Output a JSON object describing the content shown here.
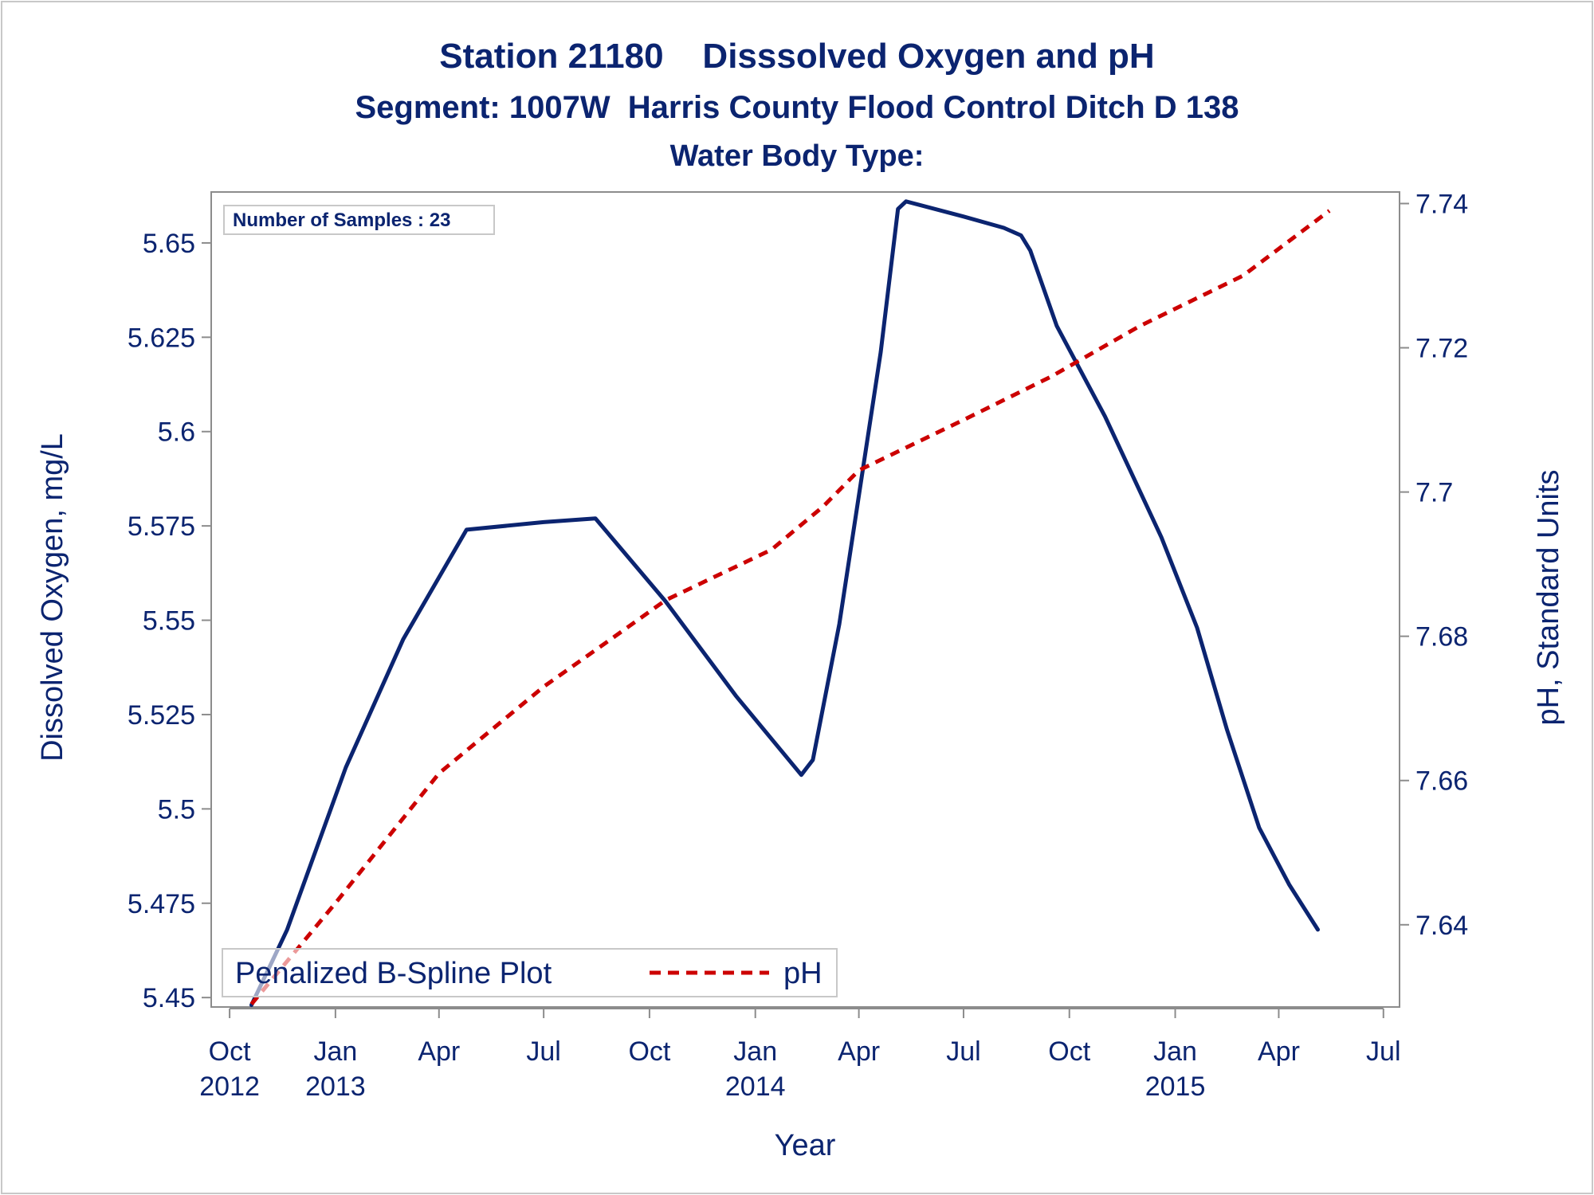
{
  "chart_data": {
    "type": "line",
    "title": "Station 21180    Disssolved Oxygen and pH",
    "subtitle": "Segment: 1007W  Harris County Flood Control Ditch D 138",
    "subtitle2": "Water Body Type:",
    "annotation": "Number of Samples : 23",
    "xlabel": "Year",
    "ylabel_left": "Dissolved Oxygen, mg/L",
    "ylabel_right": "pH, Standard Units",
    "x_ticks": [
      {
        "date": "2012-10-01",
        "label": "Oct",
        "year": "2012"
      },
      {
        "date": "2013-01-01",
        "label": "Jan",
        "year": "2013"
      },
      {
        "date": "2013-04-01",
        "label": "Apr",
        "year": ""
      },
      {
        "date": "2013-07-01",
        "label": "Jul",
        "year": ""
      },
      {
        "date": "2013-10-01",
        "label": "Oct",
        "year": ""
      },
      {
        "date": "2014-01-01",
        "label": "Jan",
        "year": "2014"
      },
      {
        "date": "2014-04-01",
        "label": "Apr",
        "year": ""
      },
      {
        "date": "2014-07-01",
        "label": "Jul",
        "year": ""
      },
      {
        "date": "2014-10-01",
        "label": "Oct",
        "year": ""
      },
      {
        "date": "2015-01-01",
        "label": "Jan",
        "year": "2015"
      },
      {
        "date": "2015-04-01",
        "label": "Apr",
        "year": ""
      },
      {
        "date": "2015-07-01",
        "label": "Jul",
        "year": ""
      }
    ],
    "xlim": [
      "2012-09-15",
      "2015-07-15"
    ],
    "y_left_ticks": [
      "5.45",
      "5.475",
      "5.5",
      "5.525",
      "5.55",
      "5.575",
      "5.6",
      "5.625",
      "5.65"
    ],
    "y_left_lim": [
      5.4475,
      5.6635
    ],
    "y_right_ticks": [
      "7.64",
      "7.66",
      "7.68",
      "7.7",
      "7.72",
      "7.74"
    ],
    "y_right_lim": [
      7.6286,
      7.7416
    ],
    "grid": false,
    "legend_position": "bottom-left",
    "series": [
      {
        "name": "Penalized B-Spline Plot",
        "axis": "left",
        "color": "#0b2470",
        "style": "solid",
        "points": [
          [
            "2012-10-20",
            5.448
          ],
          [
            "2012-11-20",
            5.468
          ],
          [
            "2013-01-10",
            5.511
          ],
          [
            "2013-03-01",
            5.545
          ],
          [
            "2013-04-25",
            5.574
          ],
          [
            "2013-07-01",
            5.576
          ],
          [
            "2013-08-15",
            5.577
          ],
          [
            "2013-10-15",
            5.555
          ],
          [
            "2013-12-15",
            5.53
          ],
          [
            "2014-02-10",
            5.509
          ],
          [
            "2014-02-20",
            5.513
          ],
          [
            "2014-03-15",
            5.549
          ],
          [
            "2014-04-20",
            5.621
          ],
          [
            "2014-05-05",
            5.659
          ],
          [
            "2014-05-12",
            5.661
          ],
          [
            "2014-07-01",
            5.657
          ],
          [
            "2014-08-05",
            5.654
          ],
          [
            "2014-08-20",
            5.652
          ],
          [
            "2014-08-28",
            5.648
          ],
          [
            "2014-09-20",
            5.628
          ],
          [
            "2014-11-01",
            5.604
          ],
          [
            "2014-12-20",
            5.572
          ],
          [
            "2015-01-20",
            5.548
          ],
          [
            "2015-02-15",
            5.521
          ],
          [
            "2015-03-15",
            5.495
          ],
          [
            "2015-04-10",
            5.48
          ],
          [
            "2015-05-05",
            5.468
          ]
        ]
      },
      {
        "name": "pH",
        "axis": "right",
        "color": "#cc0000",
        "style": "dashed",
        "points": [
          [
            "2012-10-20",
            7.629
          ],
          [
            "2013-01-01",
            7.643
          ],
          [
            "2013-04-01",
            7.661
          ],
          [
            "2013-07-01",
            7.673
          ],
          [
            "2013-09-01",
            7.68
          ],
          [
            "2013-10-15",
            7.685
          ],
          [
            "2014-01-15",
            7.692
          ],
          [
            "2014-03-01",
            7.698
          ],
          [
            "2014-04-01",
            7.703
          ],
          [
            "2014-07-01",
            7.71
          ],
          [
            "2014-09-15",
            7.716
          ],
          [
            "2014-12-01",
            7.723
          ],
          [
            "2015-03-01",
            7.73
          ],
          [
            "2015-05-15",
            7.739
          ]
        ]
      }
    ]
  }
}
